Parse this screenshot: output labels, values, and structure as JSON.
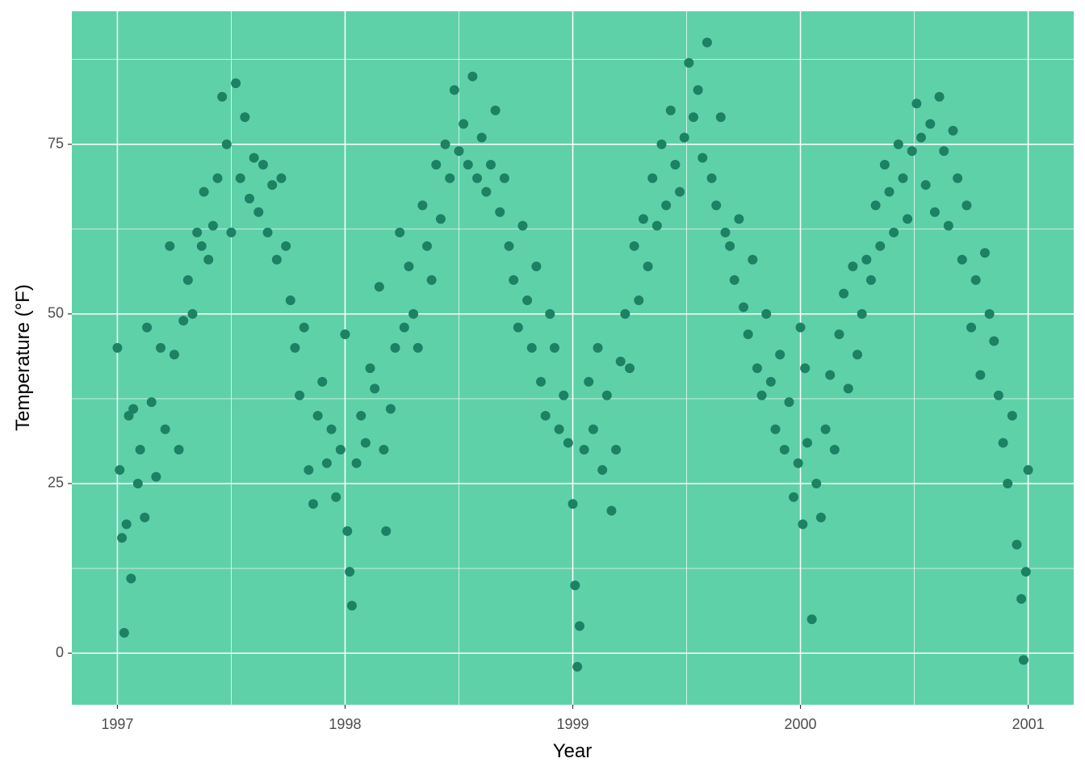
{
  "chart_data": {
    "type": "scatter",
    "x_label": "Year",
    "y_label": "Temperature (°F)",
    "color": "#1d8163",
    "background": "#5fd1a9",
    "grid": true,
    "xlim": [
      1996.8,
      2001.2
    ],
    "xticks": [
      1997,
      1998,
      1999,
      2000,
      2001
    ],
    "ylim": [
      -7.6,
      94.6
    ],
    "yticks": [
      0,
      25,
      50,
      75
    ],
    "x": [
      1997.0,
      1997.01,
      1997.02,
      1997.03,
      1997.04,
      1997.05,
      1997.06,
      1997.07,
      1997.09,
      1997.1,
      1997.12,
      1997.13,
      1997.15,
      1997.17,
      1997.19,
      1997.21,
      1997.23,
      1997.25,
      1997.27,
      1997.29,
      1997.31,
      1997.33,
      1997.35,
      1997.37,
      1997.38,
      1997.4,
      1997.42,
      1997.44,
      1997.46,
      1997.48,
      1997.5,
      1997.52,
      1997.54,
      1997.56,
      1997.58,
      1997.6,
      1997.62,
      1997.64,
      1997.66,
      1997.68,
      1997.7,
      1997.72,
      1997.74,
      1997.76,
      1997.78,
      1997.8,
      1997.82,
      1997.84,
      1997.86,
      1997.88,
      1997.9,
      1997.92,
      1997.94,
      1997.96,
      1997.98,
      1998.0,
      1998.01,
      1998.02,
      1998.03,
      1998.05,
      1998.07,
      1998.09,
      1998.11,
      1998.13,
      1998.15,
      1998.17,
      1998.18,
      1998.2,
      1998.22,
      1998.24,
      1998.26,
      1998.28,
      1998.3,
      1998.32,
      1998.34,
      1998.36,
      1998.38,
      1998.4,
      1998.42,
      1998.44,
      1998.46,
      1998.48,
      1998.5,
      1998.52,
      1998.54,
      1998.56,
      1998.58,
      1998.6,
      1998.62,
      1998.64,
      1998.66,
      1998.68,
      1998.7,
      1998.72,
      1998.74,
      1998.76,
      1998.78,
      1998.8,
      1998.82,
      1998.84,
      1998.86,
      1998.88,
      1998.9,
      1998.92,
      1998.94,
      1998.96,
      1998.98,
      1999.0,
      1999.01,
      1999.02,
      1999.03,
      1999.05,
      1999.07,
      1999.09,
      1999.11,
      1999.13,
      1999.15,
      1999.17,
      1999.19,
      1999.21,
      1999.23,
      1999.25,
      1999.27,
      1999.29,
      1999.31,
      1999.33,
      1999.35,
      1999.37,
      1999.39,
      1999.41,
      1999.43,
      1999.45,
      1999.47,
      1999.49,
      1999.51,
      1999.53,
      1999.55,
      1999.57,
      1999.59,
      1999.61,
      1999.63,
      1999.65,
      1999.67,
      1999.69,
      1999.71,
      1999.73,
      1999.75,
      1999.77,
      1999.79,
      1999.81,
      1999.83,
      1999.85,
      1999.87,
      1999.89,
      1999.91,
      1999.93,
      1999.95,
      1999.97,
      1999.99,
      2000.0,
      2000.01,
      2000.02,
      2000.03,
      2000.05,
      2000.07,
      2000.09,
      2000.11,
      2000.13,
      2000.15,
      2000.17,
      2000.19,
      2000.21,
      2000.23,
      2000.25,
      2000.27,
      2000.29,
      2000.31,
      2000.33,
      2000.35,
      2000.37,
      2000.39,
      2000.41,
      2000.43,
      2000.45,
      2000.47,
      2000.49,
      2000.51,
      2000.53,
      2000.55,
      2000.57,
      2000.59,
      2000.61,
      2000.63,
      2000.65,
      2000.67,
      2000.69,
      2000.71,
      2000.73,
      2000.75,
      2000.77,
      2000.79,
      2000.81,
      2000.83,
      2000.85,
      2000.87,
      2000.89,
      2000.91,
      2000.93,
      2000.95,
      2000.97,
      2000.98,
      2000.99,
      2001.0
    ],
    "values": [
      45,
      27,
      17,
      3,
      19,
      35,
      11,
      36,
      25,
      30,
      20,
      48,
      37,
      26,
      45,
      33,
      60,
      44,
      30,
      49,
      55,
      50,
      62,
      60,
      68,
      58,
      63,
      70,
      82,
      75,
      62,
      84,
      70,
      79,
      67,
      73,
      65,
      72,
      62,
      69,
      58,
      70,
      60,
      52,
      45,
      38,
      48,
      27,
      22,
      35,
      40,
      28,
      33,
      23,
      30,
      47,
      18,
      12,
      7,
      28,
      35,
      31,
      42,
      39,
      54,
      30,
      18,
      36,
      45,
      62,
      48,
      57,
      50,
      45,
      66,
      60,
      55,
      72,
      64,
      75,
      70,
      83,
      74,
      78,
      72,
      85,
      70,
      76,
      68,
      72,
      80,
      65,
      70,
      60,
      55,
      48,
      63,
      52,
      45,
      57,
      40,
      35,
      50,
      45,
      33,
      38,
      31,
      22,
      10,
      -2,
      4,
      30,
      40,
      33,
      45,
      27,
      38,
      21,
      30,
      43,
      50,
      42,
      60,
      52,
      64,
      57,
      70,
      63,
      75,
      66,
      80,
      72,
      68,
      76,
      87,
      79,
      83,
      73,
      90,
      70,
      66,
      79,
      62,
      60,
      55,
      64,
      51,
      47,
      58,
      42,
      38,
      50,
      40,
      33,
      44,
      30,
      37,
      23,
      28,
      48,
      19,
      42,
      31,
      5,
      25,
      20,
      33,
      41,
      30,
      47,
      53,
      39,
      57,
      44,
      50,
      58,
      55,
      66,
      60,
      72,
      68,
      62,
      75,
      70,
      64,
      74,
      81,
      76,
      69,
      78,
      65,
      82,
      74,
      63,
      77,
      70,
      58,
      66,
      48,
      55,
      41,
      59,
      50,
      46,
      38,
      31,
      25,
      35,
      16,
      8,
      -1,
      12,
      27
    ]
  }
}
